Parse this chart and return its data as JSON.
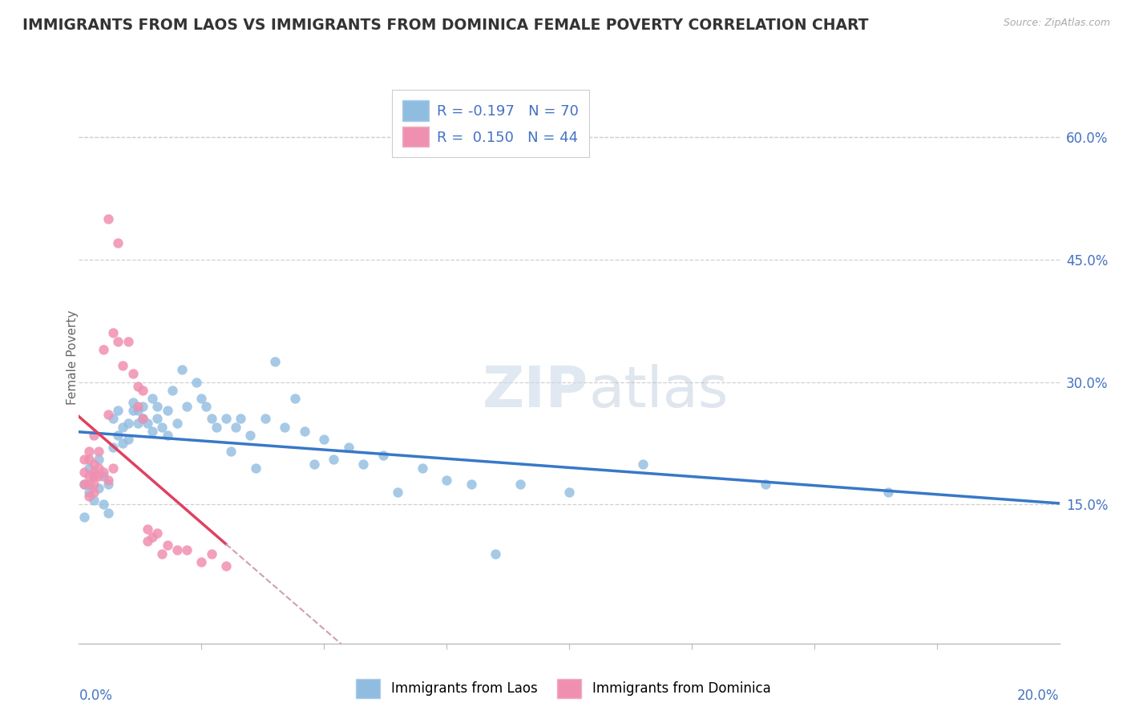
{
  "title": "IMMIGRANTS FROM LAOS VS IMMIGRANTS FROM DOMINICA FEMALE POVERTY CORRELATION CHART",
  "source": "Source: ZipAtlas.com",
  "ylabel": "Female Poverty",
  "legend_entry1": {
    "label": "Immigrants from Laos",
    "R": -0.197,
    "N": 70,
    "color": "#a8c8e8"
  },
  "legend_entry2": {
    "label": "Immigrants from Dominica",
    "R": 0.15,
    "N": 44,
    "color": "#f4b8c8"
  },
  "right_yticks": [
    "60.0%",
    "45.0%",
    "30.0%",
    "15.0%"
  ],
  "right_ytick_vals": [
    0.6,
    0.45,
    0.3,
    0.15
  ],
  "xmin": 0.0,
  "xmax": 0.2,
  "ymin": -0.02,
  "ymax": 0.68,
  "blue_color": "#90bce0",
  "pink_color": "#f090b0",
  "trendline_blue_color": "#3878c8",
  "trendline_pink_color": "#e04060",
  "trendline_dashed_color": "#d0a0b0",
  "legend_text_color": "#4472c4",
  "watermark_text": "ZIPatlas",
  "scatter_blue": [
    [
      0.001,
      0.135
    ],
    [
      0.001,
      0.175
    ],
    [
      0.002,
      0.165
    ],
    [
      0.002,
      0.195
    ],
    [
      0.003,
      0.155
    ],
    [
      0.003,
      0.185
    ],
    [
      0.004,
      0.17
    ],
    [
      0.004,
      0.205
    ],
    [
      0.005,
      0.15
    ],
    [
      0.005,
      0.185
    ],
    [
      0.006,
      0.14
    ],
    [
      0.006,
      0.175
    ],
    [
      0.007,
      0.22
    ],
    [
      0.007,
      0.255
    ],
    [
      0.008,
      0.235
    ],
    [
      0.008,
      0.265
    ],
    [
      0.009,
      0.245
    ],
    [
      0.009,
      0.225
    ],
    [
      0.01,
      0.25
    ],
    [
      0.01,
      0.23
    ],
    [
      0.011,
      0.265
    ],
    [
      0.011,
      0.275
    ],
    [
      0.012,
      0.25
    ],
    [
      0.012,
      0.265
    ],
    [
      0.013,
      0.255
    ],
    [
      0.013,
      0.27
    ],
    [
      0.014,
      0.25
    ],
    [
      0.015,
      0.24
    ],
    [
      0.015,
      0.28
    ],
    [
      0.016,
      0.255
    ],
    [
      0.016,
      0.27
    ],
    [
      0.017,
      0.245
    ],
    [
      0.018,
      0.265
    ],
    [
      0.018,
      0.235
    ],
    [
      0.019,
      0.29
    ],
    [
      0.02,
      0.25
    ],
    [
      0.021,
      0.315
    ],
    [
      0.022,
      0.27
    ],
    [
      0.024,
      0.3
    ],
    [
      0.025,
      0.28
    ],
    [
      0.026,
      0.27
    ],
    [
      0.027,
      0.255
    ],
    [
      0.028,
      0.245
    ],
    [
      0.03,
      0.255
    ],
    [
      0.031,
      0.215
    ],
    [
      0.032,
      0.245
    ],
    [
      0.033,
      0.255
    ],
    [
      0.035,
      0.235
    ],
    [
      0.036,
      0.195
    ],
    [
      0.038,
      0.255
    ],
    [
      0.04,
      0.325
    ],
    [
      0.042,
      0.245
    ],
    [
      0.044,
      0.28
    ],
    [
      0.046,
      0.24
    ],
    [
      0.048,
      0.2
    ],
    [
      0.05,
      0.23
    ],
    [
      0.052,
      0.205
    ],
    [
      0.055,
      0.22
    ],
    [
      0.058,
      0.2
    ],
    [
      0.062,
      0.21
    ],
    [
      0.065,
      0.165
    ],
    [
      0.07,
      0.195
    ],
    [
      0.075,
      0.18
    ],
    [
      0.08,
      0.175
    ],
    [
      0.085,
      0.09
    ],
    [
      0.09,
      0.175
    ],
    [
      0.1,
      0.165
    ],
    [
      0.115,
      0.2
    ],
    [
      0.14,
      0.175
    ],
    [
      0.165,
      0.165
    ]
  ],
  "scatter_pink": [
    [
      0.001,
      0.19
    ],
    [
      0.001,
      0.205
    ],
    [
      0.001,
      0.175
    ],
    [
      0.002,
      0.185
    ],
    [
      0.002,
      0.205
    ],
    [
      0.002,
      0.215
    ],
    [
      0.002,
      0.16
    ],
    [
      0.002,
      0.175
    ],
    [
      0.003,
      0.19
    ],
    [
      0.003,
      0.235
    ],
    [
      0.003,
      0.165
    ],
    [
      0.003,
      0.2
    ],
    [
      0.003,
      0.185
    ],
    [
      0.003,
      0.175
    ],
    [
      0.004,
      0.195
    ],
    [
      0.004,
      0.215
    ],
    [
      0.004,
      0.185
    ],
    [
      0.005,
      0.34
    ],
    [
      0.005,
      0.19
    ],
    [
      0.006,
      0.5
    ],
    [
      0.006,
      0.26
    ],
    [
      0.006,
      0.18
    ],
    [
      0.007,
      0.36
    ],
    [
      0.007,
      0.195
    ],
    [
      0.008,
      0.47
    ],
    [
      0.008,
      0.35
    ],
    [
      0.009,
      0.32
    ],
    [
      0.01,
      0.35
    ],
    [
      0.011,
      0.31
    ],
    [
      0.012,
      0.295
    ],
    [
      0.012,
      0.27
    ],
    [
      0.013,
      0.29
    ],
    [
      0.013,
      0.255
    ],
    [
      0.014,
      0.12
    ],
    [
      0.014,
      0.105
    ],
    [
      0.015,
      0.11
    ],
    [
      0.016,
      0.115
    ],
    [
      0.017,
      0.09
    ],
    [
      0.018,
      0.1
    ],
    [
      0.02,
      0.095
    ],
    [
      0.022,
      0.095
    ],
    [
      0.025,
      0.08
    ],
    [
      0.027,
      0.09
    ],
    [
      0.03,
      0.075
    ]
  ]
}
